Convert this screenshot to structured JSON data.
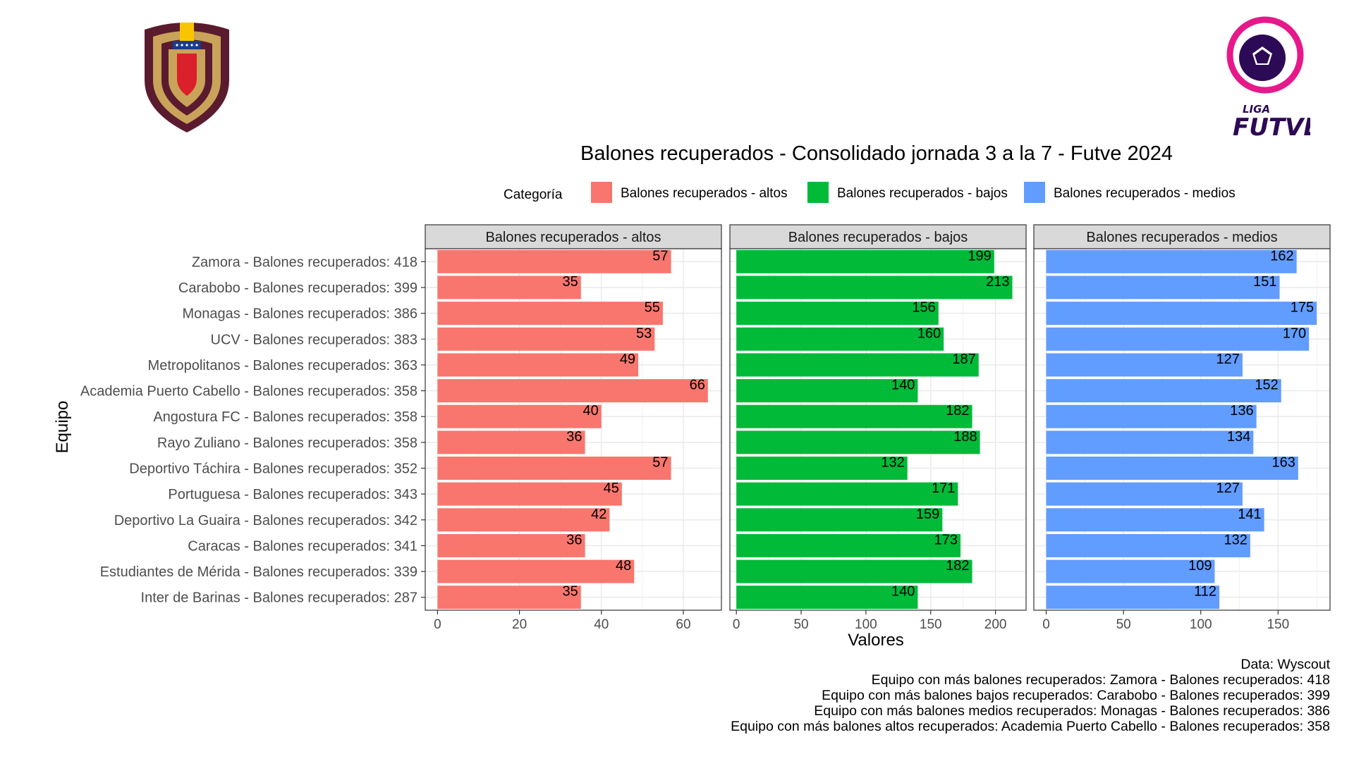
{
  "chart_data": {
    "type": "bar",
    "orientation": "horizontal",
    "title": "Balones recuperados - Consolidado jornada 3 a la 7 - Futve 2024",
    "xlabel": "Valores",
    "ylabel": "Equipo",
    "legend": {
      "title": "Categoría",
      "placement": "top",
      "entries": [
        {
          "name": "Balones recuperados - altos",
          "color": "#F8766D"
        },
        {
          "name": "Balones recuperados - bajos",
          "color": "#00BA38"
        },
        {
          "name": "Balones recuperados - medios",
          "color": "#619CFF"
        }
      ]
    },
    "categories": [
      "Zamora - Balones recuperados: 418",
      "Carabobo - Balones recuperados: 399",
      "Monagas - Balones recuperados: 386",
      "UCV - Balones recuperados: 383",
      "Metropolitanos - Balones recuperados: 363",
      "Academia Puerto Cabello - Balones recuperados: 358",
      "Angostura FC - Balones recuperados: 358",
      "Rayo Zuliano - Balones recuperados: 358",
      "Deportivo Táchira - Balones recuperados: 352",
      "Portuguesa - Balones recuperados: 343",
      "Deportivo La Guaira - Balones recuperados: 342",
      "Caracas - Balones recuperados: 341",
      "Estudiantes de Mérida - Balones recuperados: 339",
      "Inter de Barinas - Balones recuperados: 287"
    ],
    "panels": [
      {
        "name": "Balones recuperados - altos",
        "color": "#F8766D",
        "xlim": [
          -3,
          69.3
        ],
        "ticks": [
          0,
          20,
          40,
          60
        ],
        "values": [
          57,
          35,
          55,
          53,
          49,
          66,
          40,
          36,
          57,
          45,
          42,
          36,
          48,
          35
        ]
      },
      {
        "name": "Balones recuperados - bajos",
        "color": "#00BA38",
        "xlim": [
          -5,
          223.6
        ],
        "ticks": [
          0,
          50,
          100,
          150,
          200
        ],
        "values": [
          199,
          213,
          156,
          160,
          187,
          140,
          182,
          188,
          132,
          171,
          159,
          173,
          182,
          140
        ]
      },
      {
        "name": "Balones recuperados - medios",
        "color": "#619CFF",
        "xlim": [
          -8,
          183.6
        ],
        "ticks": [
          0,
          50,
          100,
          150
        ],
        "values": [
          162,
          151,
          175,
          170,
          127,
          152,
          136,
          134,
          163,
          127,
          141,
          132,
          109,
          112
        ]
      }
    ],
    "caption": [
      "Data: Wyscout",
      "Equipo con más balones recuperados: Zamora - Balones recuperados: 418",
      "Equipo con más balones bajos recuperados: Carabobo - Balones recuperados: 399",
      "Equipo con más balones medios recuperados: Monagas - Balones recuperados: 386",
      "Equipo con más balones altos recuperados: Academia Puerto Cabello - Balones recuperados: 358"
    ],
    "grid": true
  },
  "logos": {
    "left": {
      "icon": "venezuelan-football-federation-crest"
    },
    "right": {
      "icon": "liga-futve-logo",
      "text_top": "LIGA",
      "text_main": "FUTVE"
    }
  }
}
